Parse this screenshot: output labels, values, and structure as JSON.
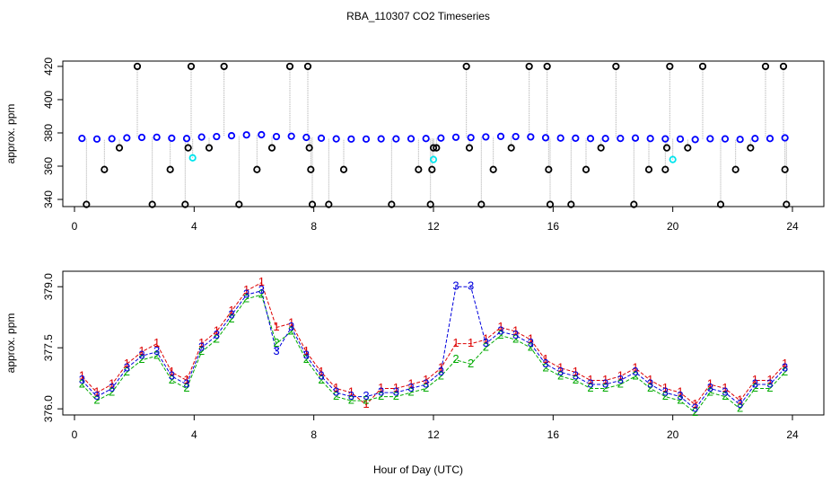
{
  "chart_data": [
    {
      "type": "scatter",
      "title": "RBA_110307  CO2 Timeseries",
      "ylabel": "approx. ppm",
      "xlim": [
        -0.39,
        25.05
      ],
      "ylim": [
        335.7,
        423.2
      ],
      "xticks": [
        0,
        4,
        8,
        12,
        16,
        20,
        24
      ],
      "yticks": [
        340,
        360,
        380,
        400,
        420
      ],
      "connector_color": "#aaaaaa",
      "series": [
        {
          "color": "#0000ff",
          "x": [
            0.25,
            0.75,
            1.25,
            1.75,
            2.25,
            2.75,
            3.25,
            3.75,
            4.25,
            4.75,
            5.25,
            5.75,
            6.25,
            6.75,
            7.25,
            7.75,
            8.25,
            8.75,
            9.25,
            9.75,
            10.25,
            10.75,
            11.25,
            11.75,
            12.25,
            12.75,
            13.25,
            13.75,
            14.25,
            14.75,
            15.25,
            15.75,
            16.25,
            16.75,
            17.25,
            17.75,
            18.25,
            18.75,
            19.25,
            19.75,
            20.25,
            20.75,
            21.25,
            21.75,
            22.25,
            22.75,
            23.25,
            23.75
          ],
          "values": [
            376.7,
            376.3,
            376.5,
            377.0,
            377.3,
            377.4,
            376.8,
            376.6,
            377.5,
            377.8,
            378.3,
            378.8,
            378.9,
            377.8,
            378.0,
            377.3,
            376.8,
            376.4,
            376.3,
            376.3,
            376.4,
            376.4,
            376.5,
            376.6,
            376.9,
            377.4,
            377.2,
            377.6,
            377.9,
            377.8,
            377.6,
            377.1,
            376.9,
            376.8,
            376.6,
            376.6,
            376.7,
            376.9,
            376.6,
            376.4,
            376.3,
            376.0,
            376.5,
            376.4,
            376.1,
            376.6,
            376.6,
            377.0
          ]
        },
        {
          "color": "#000000",
          "x": [
            0.4,
            1.0,
            1.5,
            2.1,
            2.6,
            3.2,
            3.7,
            3.8,
            3.9,
            4.5,
            5.0,
            5.5,
            6.1,
            6.6,
            7.2,
            7.8,
            7.85,
            7.9,
            7.95,
            8.5,
            9.0,
            10.6,
            11.5,
            11.9,
            11.95,
            12.0,
            12.1,
            13.1,
            13.2,
            13.6,
            14.0,
            14.6,
            15.2,
            15.8,
            15.85,
            15.9,
            16.6,
            17.1,
            17.6,
            18.1,
            18.7,
            19.2,
            19.75,
            19.8,
            19.9,
            20.5,
            21.0,
            21.6,
            22.1,
            22.6,
            23.1,
            23.7,
            23.75,
            23.8
          ],
          "values": [
            337,
            358,
            371,
            420,
            337,
            358,
            337,
            371,
            420,
            371,
            420,
            337,
            358,
            371,
            420,
            420,
            371,
            358,
            337,
            337,
            358,
            337,
            358,
            337,
            358,
            371,
            371,
            420,
            371,
            337,
            358,
            371,
            420,
            420,
            358,
            337,
            337,
            358,
            371,
            420,
            337,
            358,
            358,
            371,
            420,
            371,
            420,
            337,
            358,
            371,
            420,
            420,
            358,
            337
          ]
        },
        {
          "color": "#00e5ee",
          "x": [
            3.95,
            12.0,
            20.0
          ],
          "values": [
            365,
            364,
            364
          ]
        }
      ]
    },
    {
      "type": "line",
      "ylabel": "approx. ppm",
      "xlabel": "Hour of Day (UTC)",
      "xlim": [
        -0.39,
        25.05
      ],
      "ylim": [
        375.85,
        379.38
      ],
      "xticks": [
        0,
        4,
        8,
        12,
        16,
        20,
        24
      ],
      "yticks": [
        {
          "value": 376,
          "label": "376.0"
        },
        377.5,
        {
          "value": 379,
          "label": "379.0"
        }
      ],
      "x": [
        0.25,
        0.75,
        1.25,
        1.75,
        2.25,
        2.75,
        3.25,
        3.75,
        4.25,
        4.75,
        5.25,
        5.75,
        6.25,
        6.75,
        7.25,
        7.75,
        8.25,
        8.75,
        9.25,
        9.75,
        10.25,
        10.75,
        11.25,
        11.75,
        12.25,
        12.75,
        13.25,
        13.75,
        14.25,
        14.75,
        15.25,
        15.75,
        16.25,
        16.75,
        17.25,
        17.75,
        18.25,
        18.75,
        19.25,
        19.75,
        20.25,
        20.75,
        21.25,
        21.75,
        22.25,
        22.75,
        23.25,
        23.75
      ],
      "series": [
        {
          "marker": "1",
          "color": "#dd0000",
          "values": [
            376.8,
            376.4,
            376.6,
            377.1,
            377.4,
            377.6,
            376.9,
            376.7,
            377.6,
            377.9,
            378.4,
            378.9,
            379.1,
            378.0,
            378.1,
            377.4,
            376.9,
            376.5,
            376.4,
            376.1,
            376.5,
            376.5,
            376.6,
            376.7,
            377.0,
            377.6,
            377.6,
            377.7,
            378.0,
            377.9,
            377.7,
            377.2,
            377.0,
            376.9,
            376.7,
            376.7,
            376.8,
            377.0,
            376.7,
            376.5,
            376.4,
            376.1,
            376.6,
            376.5,
            376.2,
            376.7,
            376.7,
            377.1
          ]
        },
        {
          "marker": "2",
          "color": "#00aa00",
          "values": [
            376.6,
            376.2,
            376.4,
            376.9,
            377.2,
            377.3,
            376.7,
            376.5,
            377.4,
            377.7,
            378.2,
            378.7,
            378.8,
            377.6,
            377.9,
            377.2,
            376.7,
            376.3,
            376.2,
            376.2,
            376.3,
            376.3,
            376.4,
            376.5,
            376.8,
            377.2,
            377.1,
            377.5,
            377.8,
            377.7,
            377.5,
            377.0,
            376.8,
            376.7,
            376.5,
            376.5,
            376.6,
            376.8,
            376.5,
            376.3,
            376.2,
            375.9,
            376.4,
            376.3,
            376.0,
            376.5,
            376.5,
            376.9
          ]
        },
        {
          "marker": "3",
          "color": "#0000dd",
          "values": [
            376.7,
            376.3,
            376.5,
            377.0,
            377.3,
            377.4,
            376.8,
            376.6,
            377.5,
            377.8,
            378.3,
            378.8,
            378.9,
            377.4,
            378.0,
            377.3,
            376.8,
            376.4,
            376.3,
            376.3,
            376.4,
            376.4,
            376.5,
            376.6,
            376.9,
            379.0,
            379.0,
            377.6,
            377.9,
            377.8,
            377.6,
            377.1,
            376.9,
            376.8,
            376.6,
            376.6,
            376.7,
            376.9,
            376.6,
            376.4,
            376.3,
            376.0,
            376.5,
            376.4,
            376.1,
            376.6,
            376.6,
            377.0
          ]
        }
      ]
    }
  ]
}
